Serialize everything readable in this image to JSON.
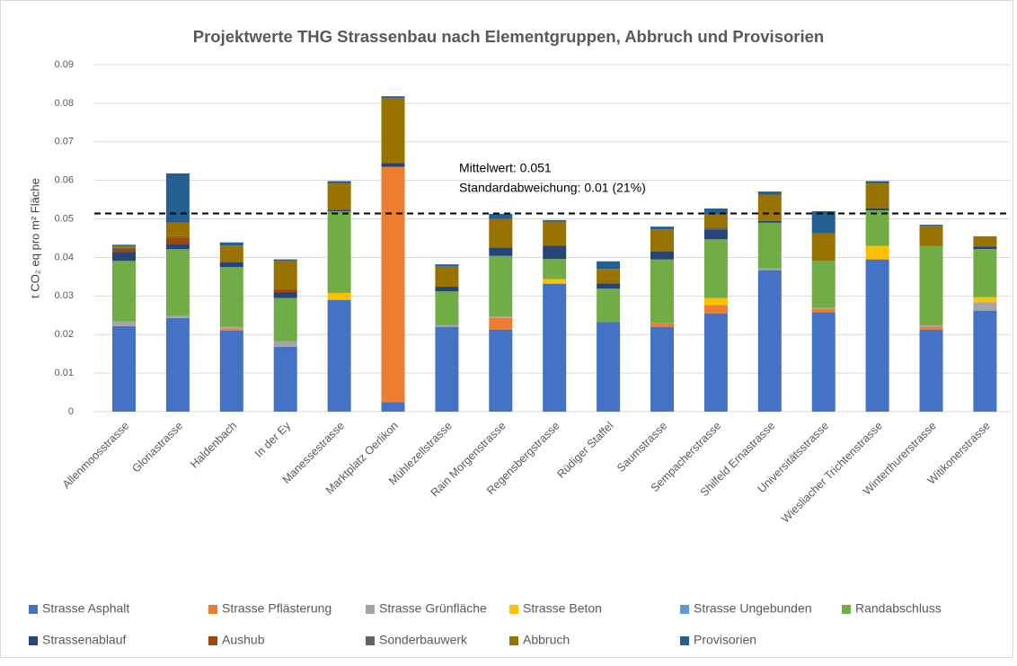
{
  "chart_data": {
    "type": "stacked_bar",
    "title": "Projektwerte THG Strassenbau nach Elementgruppen, Abbruch und Provisorien",
    "y_label": "t CO₂ eq pro m² Fläche",
    "categories": [
      "Allenmoosstrasse",
      "Gloriastrasse",
      "Haldenbach",
      "In der Ey",
      "Manessestrasse",
      "Marktplatz Oerlikon",
      "Mühlezellstrasse",
      "Rain Morgenstrasse",
      "Regensbergstrasse",
      "Rüdiger Staffel",
      "Saumstrasse",
      "Sempacherstrasse",
      "Shilfeld Ernastrasse",
      "Universitätsstrasse",
      "Wiesliacher Trichtenstrasse",
      "Winterthurerstrasse",
      "Witikonerstrasse"
    ],
    "series": [
      {
        "name": "Strasse Asphalt",
        "color": "#4472c4",
        "values": [
          0.0222,
          0.0243,
          0.021,
          0.0168,
          0.029,
          0.0025,
          0.022,
          0.0213,
          0.0332,
          0.0232,
          0.022,
          0.0255,
          0.0367,
          0.0258,
          0.0395,
          0.0213,
          0.0262
        ]
      },
      {
        "name": "Strasse Pflästerung",
        "color": "#ed7d31",
        "values": [
          0,
          0,
          0.0005,
          0,
          0,
          0.061,
          0,
          0.003,
          0,
          0,
          0.001,
          0.0022,
          0,
          0.0008,
          0,
          0.0007,
          0
        ]
      },
      {
        "name": "Strasse Grünfläche",
        "color": "#a5a5a5",
        "values": [
          0.0012,
          0.0005,
          0.0005,
          0.0015,
          0,
          0,
          0.0004,
          0.0004,
          0,
          0,
          0,
          0,
          0.0005,
          0.0003,
          0,
          0.0005,
          0.0022
        ]
      },
      {
        "name": "Strasse Beton",
        "color": "#ffc000",
        "values": [
          0,
          0,
          0,
          0,
          0.0018,
          0,
          0,
          0,
          0.0012,
          0,
          0,
          0.0018,
          0,
          0,
          0.0035,
          0,
          0.0013
        ]
      },
      {
        "name": "Strasse Ungebunden",
        "color": "#5b9bd5",
        "values": [
          0,
          0,
          0,
          0,
          0,
          0,
          0,
          0,
          0,
          0,
          0,
          0,
          0,
          0,
          0,
          0,
          0
        ]
      },
      {
        "name": "Randabschluss",
        "color": "#70ad47",
        "values": [
          0.0157,
          0.0174,
          0.0155,
          0.0112,
          0.0212,
          0,
          0.0088,
          0.0157,
          0.0052,
          0.0087,
          0.0165,
          0.0152,
          0.0118,
          0.0122,
          0.0092,
          0.0205,
          0.0125
        ]
      },
      {
        "name": "Strassenablauf",
        "color": "#264478",
        "values": [
          0.0023,
          0.0013,
          0.0013,
          0.0015,
          0.0004,
          0.001,
          0.0012,
          0.0022,
          0.0035,
          0.0014,
          0.002,
          0.0025,
          0.0005,
          0,
          0.0005,
          0,
          0.0006
        ]
      },
      {
        "name": "Aushub",
        "color": "#9e480e",
        "values": [
          0.0008,
          0.0017,
          0,
          0.0008,
          0,
          0,
          0,
          0,
          0,
          0,
          0,
          0,
          0,
          0,
          0,
          0,
          0
        ]
      },
      {
        "name": "Sonderbauwerk",
        "color": "#636363",
        "values": [
          0.0003,
          0.0003,
          0,
          0,
          0,
          0,
          0,
          0,
          0,
          0,
          0,
          0.0005,
          0,
          0,
          0,
          0,
          0.0002
        ]
      },
      {
        "name": "Abbruch",
        "color": "#997300",
        "values": [
          0.0005,
          0.0035,
          0.0043,
          0.0073,
          0.0068,
          0.0168,
          0.0052,
          0.0074,
          0.0062,
          0.0037,
          0.0058,
          0.0035,
          0.0068,
          0.0073,
          0.0065,
          0.0052,
          0.0025
        ]
      },
      {
        "name": "Provisorien",
        "color": "#255e91",
        "values": [
          0.0003,
          0.0128,
          0.0008,
          0.0004,
          0.0006,
          0.0005,
          0.0006,
          0.0013,
          0.0004,
          0.002,
          0.0007,
          0.0015,
          0.0008,
          0.0056,
          0.0006,
          0.0003,
          0
        ]
      }
    ],
    "mean_line": {
      "value": 0.0514,
      "label": "Mittelwert: 0.051"
    },
    "annotation": "Standardabweichung: 0.01 (21%)",
    "ylim": [
      0,
      0.09
    ],
    "yticks": [
      0,
      0.01,
      0.02,
      0.03,
      0.04,
      0.05,
      0.06,
      0.07,
      0.08,
      0.09
    ],
    "grid": true
  }
}
